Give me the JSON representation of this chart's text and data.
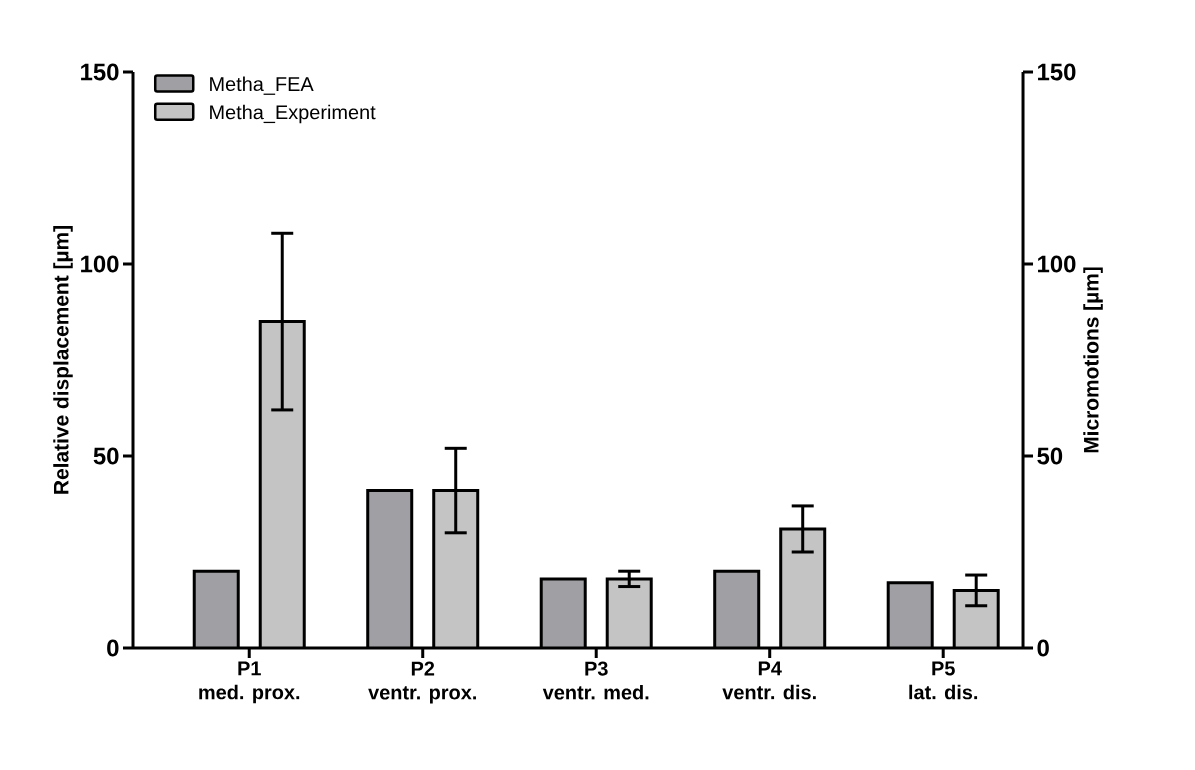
{
  "chart_data": {
    "type": "bar",
    "categories": [
      "P1\nmed. prox.",
      "P2\nventr. prox.",
      "P3\nventr. med.",
      "P4\nventr. dis.",
      "P5\nlat. dis."
    ],
    "series": [
      {
        "name": "Metha_FEA",
        "color": "#a0a0a4",
        "values": [
          20,
          41,
          18,
          20,
          17
        ]
      },
      {
        "name": "Metha_Experiment",
        "color": "#c4c4c4",
        "values": [
          85,
          41,
          18,
          31,
          15
        ],
        "errors": [
          23,
          11,
          2,
          6,
          4
        ]
      }
    ],
    "ylabel": "Relative displacement [µm]",
    "y2label": "Micromotions [µm]",
    "ylim": [
      0,
      150
    ],
    "yticks": [
      0,
      50,
      100,
      150
    ],
    "y2lim": [
      0,
      150
    ],
    "y2ticks": [
      0,
      50,
      100,
      150
    ],
    "legend": "top left",
    "grid": false
  }
}
